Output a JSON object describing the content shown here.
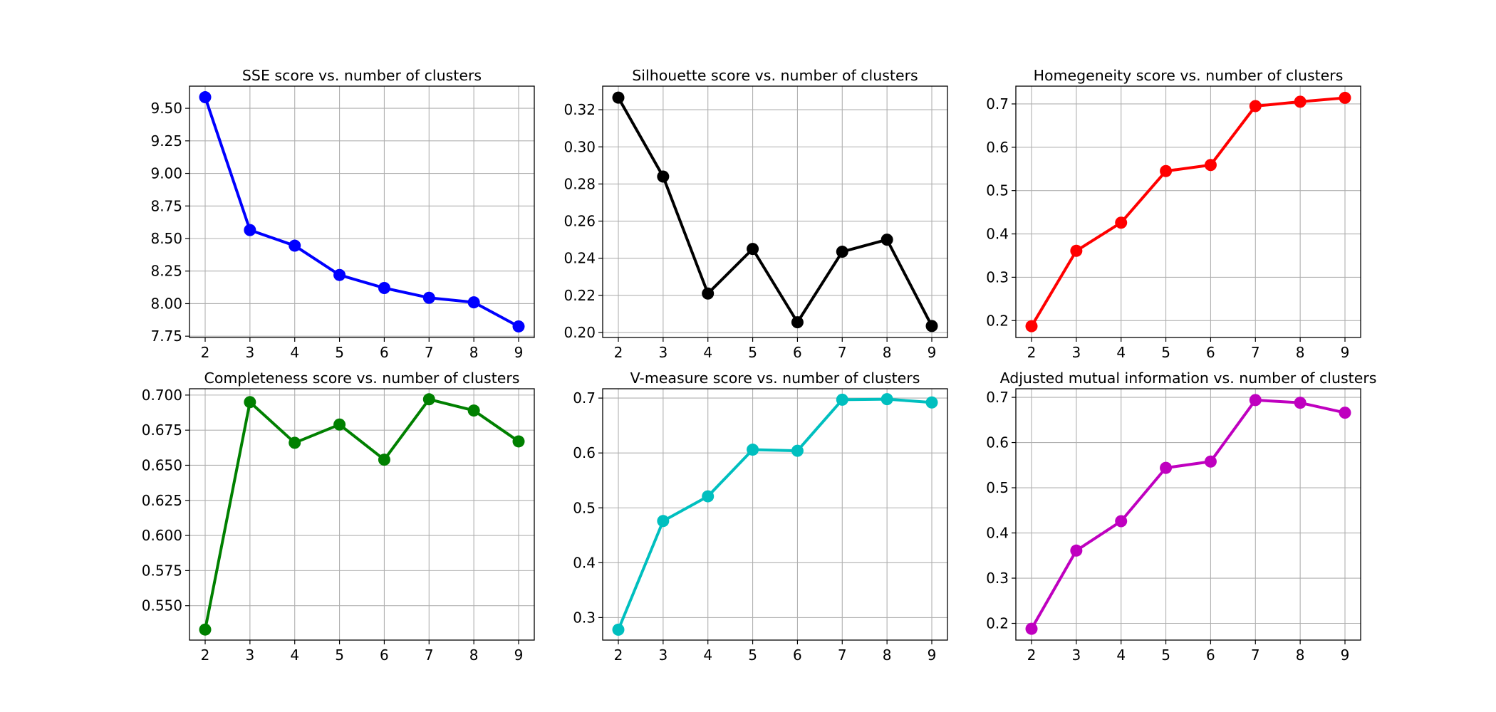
{
  "chart_data": [
    {
      "type": "line",
      "title": "SSE score vs. number of clusters",
      "color": "#0000ff",
      "x": [
        2,
        3,
        4,
        5,
        6,
        7,
        8,
        9
      ],
      "y": [
        9.585,
        8.565,
        8.445,
        8.22,
        8.12,
        8.045,
        8.01,
        7.825
      ],
      "xticks": [
        "2",
        "3",
        "4",
        "5",
        "6",
        "7",
        "8",
        "9"
      ],
      "yticks": [
        7.75,
        8.0,
        8.25,
        8.5,
        8.75,
        9.0,
        9.25,
        9.5
      ],
      "ytick_labels": [
        "7.75",
        "8.00",
        "8.25",
        "8.50",
        "8.75",
        "9.00",
        "9.25",
        "9.50"
      ],
      "xlim": [
        1.65,
        9.35
      ],
      "ylim": [
        7.74,
        9.67
      ],
      "grid": true
    },
    {
      "type": "line",
      "title": "Silhouette score vs. number of clusters",
      "color": "#000000",
      "x": [
        2,
        3,
        4,
        5,
        6,
        7,
        8,
        9
      ],
      "y": [
        0.3265,
        0.284,
        0.221,
        0.245,
        0.2055,
        0.2435,
        0.25,
        0.2035
      ],
      "xticks": [
        "2",
        "3",
        "4",
        "5",
        "6",
        "7",
        "8",
        "9"
      ],
      "yticks": [
        0.2,
        0.22,
        0.24,
        0.26,
        0.28,
        0.3,
        0.32
      ],
      "ytick_labels": [
        "0.20",
        "0.22",
        "0.24",
        "0.26",
        "0.28",
        "0.30",
        "0.32"
      ],
      "xlim": [
        1.65,
        9.35
      ],
      "ylim": [
        0.1973,
        0.3327
      ],
      "grid": true
    },
    {
      "type": "line",
      "title": "Homegeneity score vs. number of clusters",
      "color": "#ff0000",
      "x": [
        2,
        3,
        4,
        5,
        6,
        7,
        8,
        9
      ],
      "y": [
        0.187,
        0.361,
        0.426,
        0.545,
        0.559,
        0.695,
        0.705,
        0.714
      ],
      "xticks": [
        "2",
        "3",
        "4",
        "5",
        "6",
        "7",
        "8",
        "9"
      ],
      "yticks": [
        0.2,
        0.3,
        0.4,
        0.5,
        0.6,
        0.7
      ],
      "ytick_labels": [
        "0.2",
        "0.3",
        "0.4",
        "0.5",
        "0.6",
        "0.7"
      ],
      "xlim": [
        1.65,
        9.35
      ],
      "ylim": [
        0.161,
        0.741
      ],
      "grid": true
    },
    {
      "type": "line",
      "title": "Completeness score vs. number of clusters",
      "color": "#008000",
      "x": [
        2,
        3,
        4,
        5,
        6,
        7,
        8,
        9
      ],
      "y": [
        0.533,
        0.695,
        0.666,
        0.679,
        0.654,
        0.697,
        0.689,
        0.667
      ],
      "xticks": [
        "2",
        "3",
        "4",
        "5",
        "6",
        "7",
        "8",
        "9"
      ],
      "yticks": [
        0.55,
        0.575,
        0.6,
        0.625,
        0.65,
        0.675,
        0.7
      ],
      "ytick_labels": [
        "0.550",
        "0.575",
        "0.600",
        "0.625",
        "0.650",
        "0.675",
        "0.700"
      ],
      "xlim": [
        1.65,
        9.35
      ],
      "ylim": [
        0.5255,
        0.7045
      ],
      "grid": true
    },
    {
      "type": "line",
      "title": "V-measure score vs. number of clusters",
      "color": "#00bfbf",
      "x": [
        2,
        3,
        4,
        5,
        6,
        7,
        8,
        9
      ],
      "y": [
        0.278,
        0.476,
        0.521,
        0.606,
        0.604,
        0.697,
        0.698,
        0.692
      ],
      "xticks": [
        "2",
        "3",
        "4",
        "5",
        "6",
        "7",
        "8",
        "9"
      ],
      "yticks": [
        0.3,
        0.4,
        0.5,
        0.6,
        0.7
      ],
      "ytick_labels": [
        "0.3",
        "0.4",
        "0.5",
        "0.6",
        "0.7"
      ],
      "xlim": [
        1.65,
        9.35
      ],
      "ylim": [
        0.259,
        0.717
      ],
      "grid": true
    },
    {
      "type": "line",
      "title": "Adjusted mutual information vs. number of clusters",
      "color": "#bf00bf",
      "x": [
        2,
        3,
        4,
        5,
        6,
        7,
        8,
        9
      ],
      "y": [
        0.188,
        0.361,
        0.426,
        0.544,
        0.558,
        0.694,
        0.688,
        0.666
      ],
      "xticks": [
        "2",
        "3",
        "4",
        "5",
        "6",
        "7",
        "8",
        "9"
      ],
      "yticks": [
        0.2,
        0.3,
        0.4,
        0.5,
        0.6,
        0.7
      ],
      "ytick_labels": [
        "0.2",
        "0.3",
        "0.4",
        "0.5",
        "0.6",
        "0.7"
      ],
      "xlim": [
        1.65,
        9.35
      ],
      "ylim": [
        0.163,
        0.719
      ],
      "grid": true
    }
  ]
}
